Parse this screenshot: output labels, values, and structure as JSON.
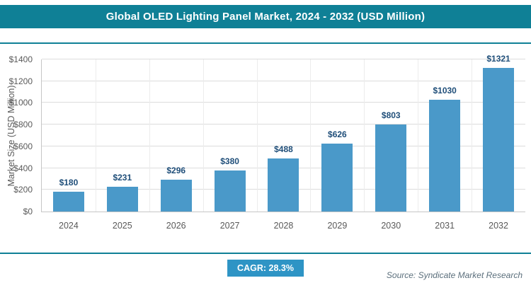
{
  "header": {
    "title": "Global OLED Lighting Panel Market, 2024 - 2032 (USD Million)"
  },
  "chart_data": {
    "type": "bar",
    "title": "Global OLED Lighting Panel Market, 2024 - 2032 (USD Million)",
    "categories": [
      "2024",
      "2025",
      "2026",
      "2027",
      "2028",
      "2029",
      "2030",
      "2031",
      "2032"
    ],
    "values": [
      180,
      231,
      296,
      380,
      488,
      626,
      803,
      1030,
      1321
    ],
    "value_labels": [
      "$180",
      "$231",
      "$296",
      "$380",
      "$488",
      "$626",
      "$803",
      "$1030",
      "$1321"
    ],
    "xlabel": "",
    "ylabel": "Market Size (USD Million)",
    "ylim": [
      0,
      1400
    ],
    "ytick_step": 200,
    "ytick_labels": [
      "$0",
      "$200",
      "$400",
      "$600",
      "$800",
      "$1000",
      "$1200",
      "$1400"
    ],
    "grid": true,
    "legend": "none",
    "bar_color": "#4a99c9",
    "value_label_color": "#1f4e79"
  },
  "footer": {
    "cagr_label": "CAGR: 28.3%",
    "source": "Source: Syndicate Market Research"
  },
  "colors": {
    "teal": "#0f8096",
    "bar": "#4a99c9",
    "badge": "#2e94c5",
    "navy": "#1f4e79"
  }
}
